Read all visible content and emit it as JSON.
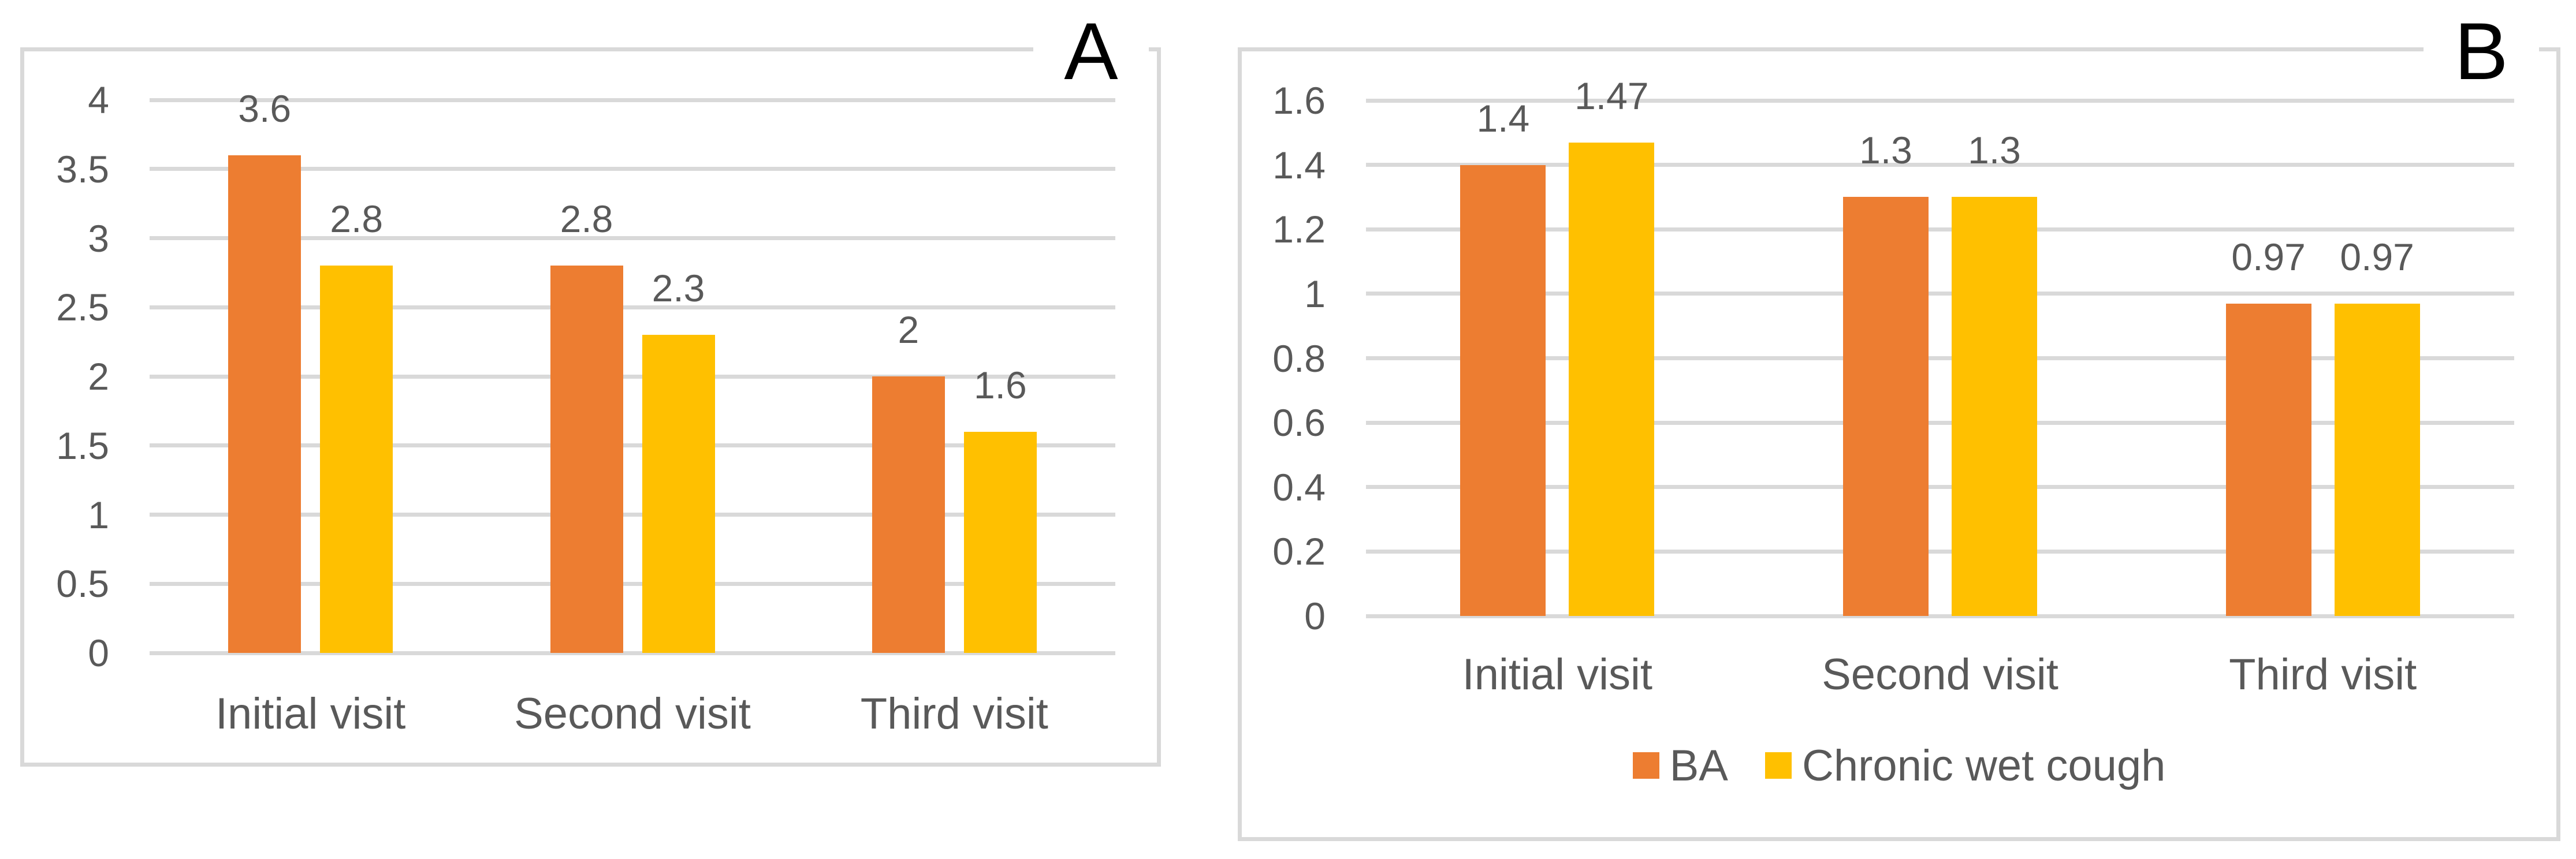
{
  "colors": {
    "ba": "#ED7D31",
    "chronic_wet_cough": "#FFC000",
    "grid": "#D9D9D9",
    "panel_border": "#D9D9D9",
    "text": "#595959",
    "panel_label": "#000000"
  },
  "chart_data": [
    {
      "type": "bar",
      "panel_label": "A",
      "title": "",
      "xlabel": "",
      "ylabel": "",
      "categories": [
        "Initial visit",
        "Second visit",
        "Third visit"
      ],
      "series": [
        {
          "name": "BA",
          "color_key": "ba",
          "values": [
            3.6,
            2.8,
            2
          ]
        },
        {
          "name": "Chronic wet cough",
          "color_key": "chronic_wet_cough",
          "values": [
            2.8,
            2.3,
            1.6
          ]
        }
      ],
      "data_labels": [
        [
          "3.6",
          "2.8"
        ],
        [
          "2.8",
          "2.3"
        ],
        [
          "2",
          "1.6"
        ]
      ],
      "ylim": [
        0,
        4
      ],
      "ytick_step": 0.5,
      "ytick_labels": [
        "4",
        "3.5",
        "3",
        "2.5",
        "2",
        "1.5",
        "1",
        "0.5",
        "0"
      ],
      "grid": true,
      "legend_position": "none"
    },
    {
      "type": "bar",
      "panel_label": "B",
      "title": "",
      "xlabel": "",
      "ylabel": "",
      "categories": [
        "Initial visit",
        "Second visit",
        "Third visit"
      ],
      "series": [
        {
          "name": "BA",
          "color_key": "ba",
          "values": [
            1.4,
            1.3,
            0.97
          ]
        },
        {
          "name": "Chronic wet cough",
          "color_key": "chronic_wet_cough",
          "values": [
            1.47,
            1.3,
            0.97
          ]
        }
      ],
      "data_labels": [
        [
          "1.4",
          "1.47"
        ],
        [
          "1.3",
          "1.3"
        ],
        [
          "0.97",
          "0.97"
        ]
      ],
      "ylim": [
        0,
        1.6
      ],
      "ytick_step": 0.2,
      "ytick_labels": [
        "1.6",
        "1.4",
        "1.2",
        "1",
        "0.8",
        "0.6",
        "0.4",
        "0.2",
        "0"
      ],
      "grid": true,
      "legend_position": "bottom"
    }
  ]
}
